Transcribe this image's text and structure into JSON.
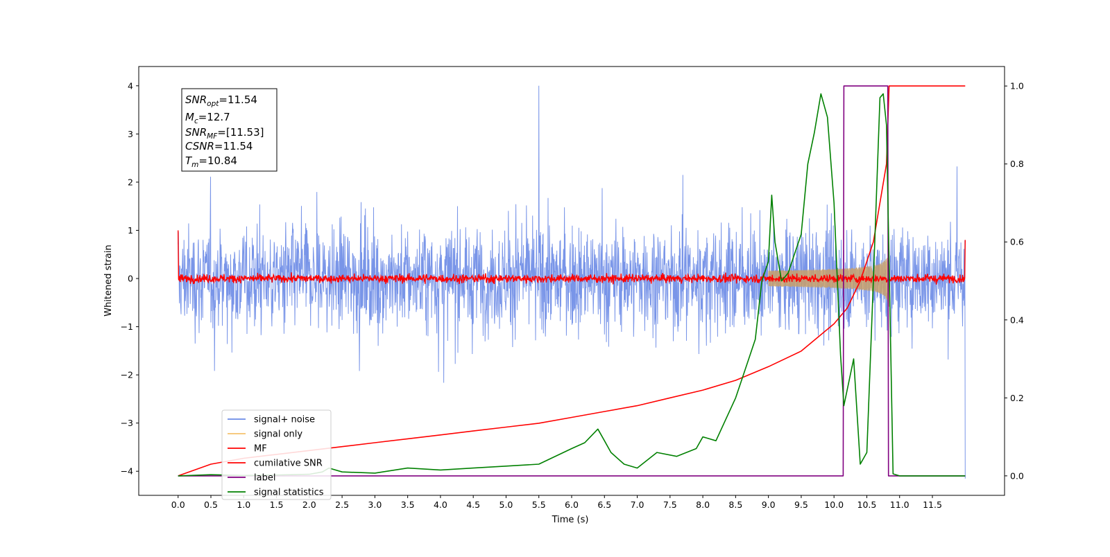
{
  "chart_data": {
    "type": "line",
    "xlabel": "Time (s)",
    "ylabel": "Whitened strain",
    "xlim": [
      -0.6,
      12.6
    ],
    "ylim": [
      -4.5,
      4.4
    ],
    "y2lim": [
      -0.05,
      1.05
    ],
    "xticks": [
      "0.0",
      "0.5",
      "1.0",
      "1.5",
      "2.0",
      "2.5",
      "3.0",
      "3.5",
      "4.0",
      "4.5",
      "5.0",
      "5.5",
      "6.0",
      "6.5",
      "7.0",
      "7.5",
      "8.0",
      "8.5",
      "9.0",
      "9.5",
      "10.0",
      "10.5",
      "11.0",
      "11.5"
    ],
    "yticks": [
      "4",
      "3",
      "2",
      "1",
      "0",
      "−1",
      "−2",
      "−3",
      "−4"
    ],
    "y2ticks": [
      "1.0",
      "0.8",
      "0.6",
      "0.4",
      "0.2",
      "0.0"
    ],
    "annotation": {
      "snr_opt": {
        "name": "SNR",
        "sub": "opt",
        "value": "=11.54"
      },
      "mc": {
        "name": "M",
        "sub": "c",
        "value": "=12.7"
      },
      "snr_mf": {
        "name": "SNR",
        "sub": "MF",
        "value": "=[11.53]"
      },
      "csnr": {
        "name": "CSNR",
        "sub": "",
        "value": "=11.54"
      },
      "tm": {
        "name": "T",
        "sub": "m",
        "value": "=10.84"
      }
    },
    "legend": {
      "location": "lower-left",
      "entries": [
        {
          "label": "signal+ noise",
          "color": "#6a89e6"
        },
        {
          "label": "signal only",
          "color": "#f5c26b"
        },
        {
          "label": "MF",
          "color": "#ff0000"
        },
        {
          "label": "cumilative SNR",
          "color": "#ff0000"
        },
        {
          "label": "label",
          "color": "#800080"
        },
        {
          "label": "signal statistics",
          "color": "#008000"
        }
      ]
    },
    "series": [
      {
        "name": "signal+ noise",
        "axis": "left",
        "t_range": [
          0,
          12
        ],
        "mean": 0,
        "envelope": [
          -1.8,
          1.8
        ],
        "peaks": [
          4.0,
          -4.15
        ]
      },
      {
        "name": "signal only",
        "axis": "left",
        "t_range": [
          9.0,
          10.84
        ],
        "amplitude_at_merger": 0.8
      },
      {
        "name": "MF",
        "axis": "left",
        "t_range": [
          0,
          12
        ],
        "mean": 0,
        "envelope": [
          -0.15,
          0.15
        ],
        "edge_values": [
          1.0,
          0.8
        ]
      },
      {
        "name": "cumilative SNR",
        "axis": "right",
        "x": [
          0,
          0.5,
          1,
          1.5,
          2,
          2.5,
          3,
          3.5,
          4,
          4.5,
          5,
          5.5,
          6,
          6.5,
          7,
          7.5,
          8,
          8.5,
          9,
          9.5,
          10,
          10.2,
          10.4,
          10.6,
          10.8,
          10.84,
          12
        ],
        "y": [
          0,
          0.03,
          0.045,
          0.055,
          0.065,
          0.075,
          0.085,
          0.095,
          0.105,
          0.115,
          0.125,
          0.135,
          0.15,
          0.165,
          0.18,
          0.2,
          0.22,
          0.245,
          0.28,
          0.32,
          0.39,
          0.43,
          0.5,
          0.6,
          0.8,
          1.0,
          1.0
        ]
      },
      {
        "name": "label",
        "axis": "right",
        "x": [
          0,
          10.14,
          10.15,
          10.82,
          10.83,
          12
        ],
        "y": [
          0,
          0,
          1,
          1,
          0,
          0
        ]
      },
      {
        "name": "signal statistics",
        "axis": "right",
        "x": [
          0,
          0.5,
          1,
          1.5,
          2,
          2.2,
          2.3,
          2.5,
          3,
          3.5,
          4,
          4.5,
          5,
          5.5,
          6,
          6.2,
          6.4,
          6.5,
          6.6,
          6.8,
          7,
          7.3,
          7.6,
          7.9,
          8,
          8.2,
          8.5,
          8.7,
          8.8,
          8.9,
          9,
          9.05,
          9.1,
          9.2,
          9.3,
          9.5,
          9.6,
          9.7,
          9.8,
          9.9,
          10,
          10.1,
          10.15,
          10.2,
          10.3,
          10.4,
          10.5,
          10.6,
          10.7,
          10.75,
          10.8,
          10.9,
          11,
          11.5,
          12
        ],
        "y": [
          0,
          0.003,
          0.001,
          0.002,
          0.004,
          0.01,
          0.02,
          0.01,
          0.007,
          0.02,
          0.015,
          0.02,
          0.025,
          0.03,
          0.07,
          0.085,
          0.12,
          0.09,
          0.06,
          0.03,
          0.02,
          0.06,
          0.05,
          0.07,
          0.1,
          0.09,
          0.2,
          0.3,
          0.35,
          0.5,
          0.55,
          0.72,
          0.6,
          0.5,
          0.52,
          0.62,
          0.8,
          0.88,
          0.98,
          0.92,
          0.7,
          0.31,
          0.18,
          0.22,
          0.3,
          0.03,
          0.06,
          0.5,
          0.97,
          0.98,
          0.9,
          0.005,
          0,
          0,
          0
        ]
      }
    ]
  }
}
